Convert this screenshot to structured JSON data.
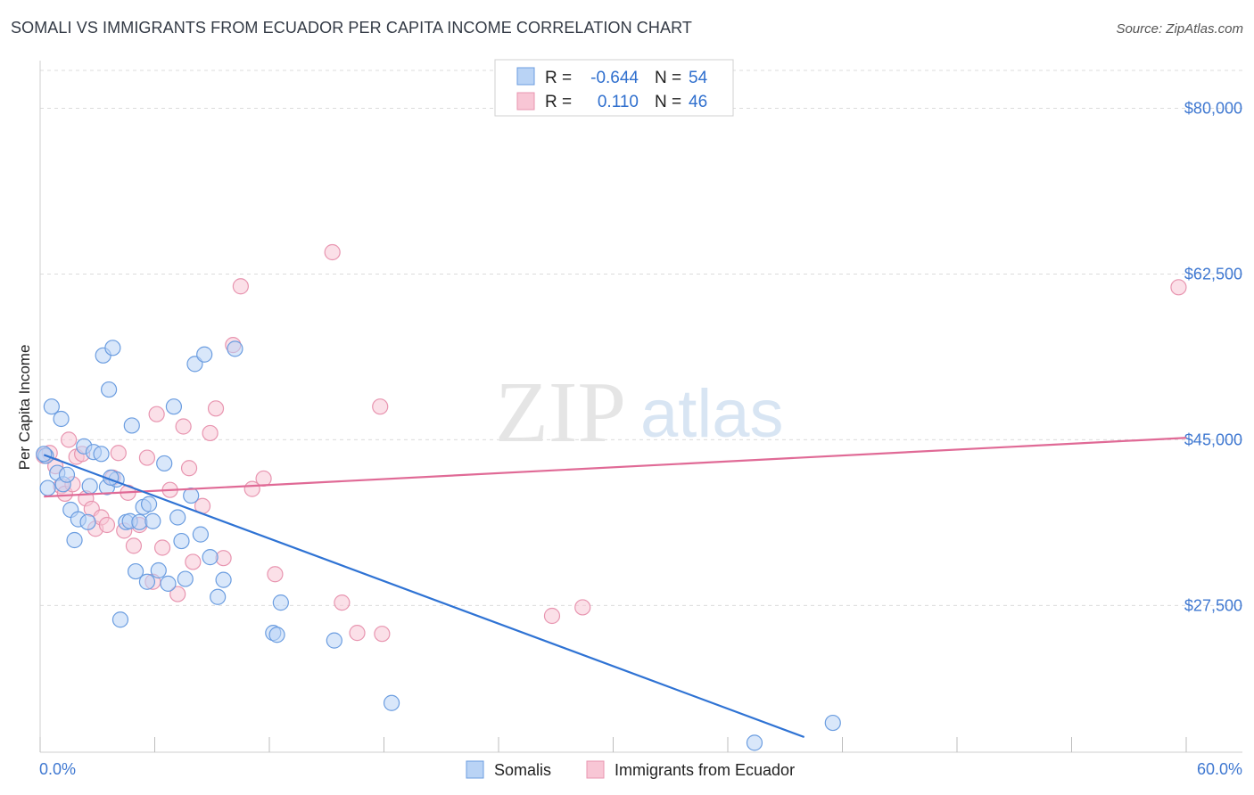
{
  "title": "SOMALI VS IMMIGRANTS FROM ECUADOR PER CAPITA INCOME CORRELATION CHART",
  "source": "Source: ZipAtlas.com",
  "watermark": {
    "zip": "ZIP",
    "atlas": "atlas"
  },
  "colors": {
    "somali_fill": "#b9d3f5",
    "somali_stroke": "#6b9de0",
    "somali_line": "#2f73d4",
    "ecuador_fill": "#f8c6d5",
    "ecuador_stroke": "#e895b0",
    "ecuador_line": "#e06a96",
    "grid": "#dcdcdc",
    "tick_text": "#3f78d1"
  },
  "stats": {
    "r_label": "R =",
    "n_label": "N =",
    "rows": [
      {
        "r": "-0.644",
        "n": "54"
      },
      {
        "r": "0.110",
        "n": "46"
      }
    ]
  },
  "chart_data": {
    "type": "scatter",
    "ylabel": "Per Capita Income",
    "xlim": [
      0,
      60
    ],
    "ylim": [
      12000,
      84000
    ],
    "y_ticks": [
      {
        "value": 80000,
        "label": "$80,000"
      },
      {
        "value": 62500,
        "label": "$62,500"
      },
      {
        "value": 45000,
        "label": "$45,000"
      },
      {
        "value": 27500,
        "label": "$27,500"
      }
    ],
    "x_tick_labels": {
      "left": "0.0%",
      "right": "60.0%"
    },
    "legend_placement": "bottom-center",
    "grid": "horizontal-dashed",
    "series": [
      {
        "name": "Somalis",
        "trend": {
          "x0": 0.2,
          "y0": 43400,
          "x1": 40,
          "y1": 13600
        },
        "points": [
          [
            0.3,
            43300
          ],
          [
            0.4,
            39900
          ],
          [
            0.6,
            48500
          ],
          [
            0.9,
            41500
          ],
          [
            1.1,
            47200
          ],
          [
            1.2,
            40300
          ],
          [
            1.4,
            41300
          ],
          [
            1.6,
            37600
          ],
          [
            1.8,
            34400
          ],
          [
            2.0,
            36600
          ],
          [
            2.3,
            44300
          ],
          [
            2.5,
            36300
          ],
          [
            2.8,
            43700
          ],
          [
            2.6,
            40100
          ],
          [
            3.2,
            43500
          ],
          [
            3.3,
            53900
          ],
          [
            3.5,
            40000
          ],
          [
            3.6,
            50300
          ],
          [
            3.8,
            54700
          ],
          [
            4.0,
            40800
          ],
          [
            4.2,
            26000
          ],
          [
            4.5,
            36300
          ],
          [
            4.7,
            36400
          ],
          [
            4.8,
            46500
          ],
          [
            5.0,
            31100
          ],
          [
            5.2,
            36300
          ],
          [
            5.4,
            37900
          ],
          [
            5.6,
            30000
          ],
          [
            5.7,
            38200
          ],
          [
            5.9,
            36400
          ],
          [
            6.2,
            31200
          ],
          [
            6.5,
            42500
          ],
          [
            6.7,
            29800
          ],
          [
            7.0,
            48500
          ],
          [
            7.2,
            36800
          ],
          [
            7.4,
            34300
          ],
          [
            7.6,
            30300
          ],
          [
            7.9,
            39100
          ],
          [
            8.1,
            53000
          ],
          [
            8.4,
            35000
          ],
          [
            8.6,
            54000
          ],
          [
            8.9,
            32600
          ],
          [
            9.3,
            28400
          ],
          [
            9.6,
            30200
          ],
          [
            10.2,
            54600
          ],
          [
            12.2,
            24600
          ],
          [
            12.4,
            24400
          ],
          [
            12.6,
            27800
          ],
          [
            15.4,
            23800
          ],
          [
            18.4,
            17200
          ],
          [
            37.4,
            13000
          ],
          [
            41.5,
            15100
          ],
          [
            0.2,
            43500
          ],
          [
            3.7,
            41000
          ]
        ]
      },
      {
        "name": "Immigrants from Ecuador",
        "trend": {
          "x0": 0.2,
          "y0": 39000,
          "x1": 60,
          "y1": 45200
        },
        "points": [
          [
            0.2,
            43300
          ],
          [
            0.8,
            42200
          ],
          [
            1.1,
            40100
          ],
          [
            1.3,
            39300
          ],
          [
            1.5,
            45000
          ],
          [
            1.7,
            40300
          ],
          [
            1.9,
            43200
          ],
          [
            2.2,
            43500
          ],
          [
            2.4,
            38800
          ],
          [
            2.7,
            37700
          ],
          [
            2.9,
            35600
          ],
          [
            3.2,
            36800
          ],
          [
            3.5,
            36000
          ],
          [
            3.8,
            41000
          ],
          [
            4.1,
            43600
          ],
          [
            4.4,
            35400
          ],
          [
            4.6,
            39400
          ],
          [
            4.9,
            33800
          ],
          [
            5.2,
            36000
          ],
          [
            5.6,
            43100
          ],
          [
            5.9,
            30000
          ],
          [
            6.1,
            47700
          ],
          [
            6.4,
            33600
          ],
          [
            6.8,
            39700
          ],
          [
            7.2,
            28700
          ],
          [
            7.5,
            46400
          ],
          [
            7.8,
            42000
          ],
          [
            8.0,
            32100
          ],
          [
            8.5,
            38000
          ],
          [
            8.9,
            45700
          ],
          [
            9.2,
            48300
          ],
          [
            9.6,
            32500
          ],
          [
            10.1,
            55000
          ],
          [
            10.5,
            61200
          ],
          [
            11.1,
            39800
          ],
          [
            11.7,
            40900
          ],
          [
            12.3,
            30800
          ],
          [
            15.3,
            64800
          ],
          [
            15.8,
            27800
          ],
          [
            16.6,
            24600
          ],
          [
            17.8,
            48500
          ],
          [
            17.9,
            24500
          ],
          [
            26.8,
            26400
          ],
          [
            28.4,
            27300
          ],
          [
            59.6,
            61100
          ],
          [
            0.5,
            43600
          ]
        ]
      }
    ]
  }
}
